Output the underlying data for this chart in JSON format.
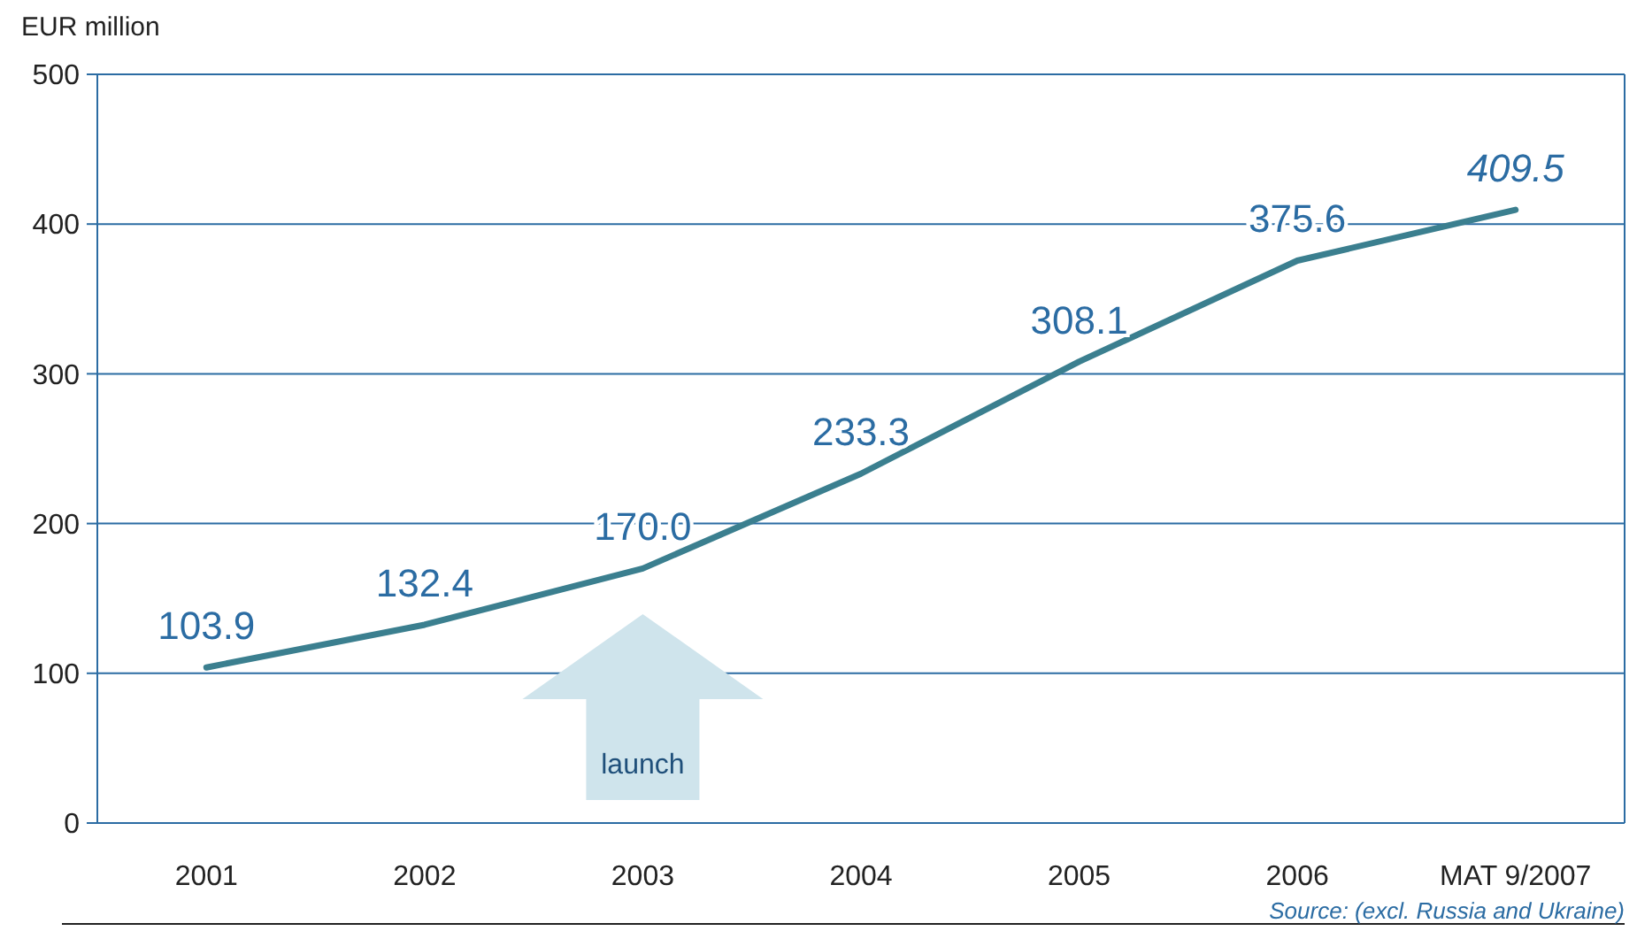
{
  "chart_data": {
    "type": "line",
    "ylabel": "EUR million",
    "categories": [
      "2001",
      "2002",
      "2003",
      "2004",
      "2005",
      "2006",
      "MAT 9/2007"
    ],
    "series": [
      {
        "color": "#3b7f8f",
        "values": [
          103.9,
          132.4,
          170.0,
          233.3,
          308.1,
          375.6,
          409.5
        ],
        "value_labels": [
          "103.9",
          "132.4",
          "170.0",
          "233.3",
          "308.1",
          "375.6",
          "409.5"
        ]
      }
    ],
    "ylim": [
      0,
      500
    ],
    "yticks": [
      0,
      100,
      200,
      300,
      400,
      500
    ],
    "grid": "y",
    "marker": "none",
    "line_style": "solid",
    "annotations": [
      "launch",
      "Source: (excl. Russia and Ukraine)"
    ]
  }
}
